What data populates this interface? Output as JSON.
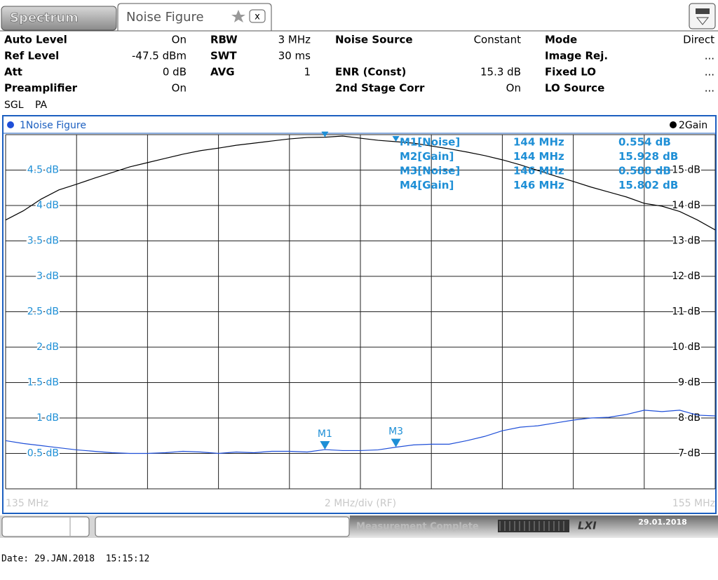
{
  "tabs": [
    "Spectrum",
    "Noise Figure"
  ],
  "settings": [
    [
      {
        "label": "Auto Level",
        "value": "On"
      },
      {
        "label": "RBW",
        "value": "3 MHz"
      },
      {
        "label": "Noise Source",
        "value": "Constant"
      },
      {
        "label": "Mode",
        "value": "Direct"
      }
    ],
    [
      {
        "label": "Ref Level",
        "value": "-47.5 dBm"
      },
      {
        "label": "SWT",
        "value": "30 ms"
      },
      null,
      {
        "label": "Image Rej.",
        "value": "..."
      }
    ],
    [
      {
        "label": "Att",
        "value": "0 dB"
      },
      {
        "label": "AVG",
        "value": "1"
      },
      {
        "label": "ENR (Const)",
        "value": "15.3 dB"
      },
      {
        "label": "Fixed LO",
        "value": "..."
      }
    ],
    [
      {
        "label": "Preamplifier",
        "value": "On"
      },
      null,
      {
        "label": "2nd Stage Corr",
        "value": "On"
      },
      {
        "label": "LO Source",
        "value": "..."
      }
    ]
  ],
  "sweep_status": [
    "SGL",
    "PA"
  ],
  "chart_data": {
    "type": "line",
    "x": [
      135,
      135.5,
      136,
      136.5,
      137,
      137.5,
      138,
      138.5,
      139,
      139.5,
      140,
      140.5,
      141,
      141.5,
      142,
      142.5,
      143,
      143.5,
      144,
      144.5,
      145,
      145.5,
      146,
      146.5,
      147,
      147.5,
      148,
      148.5,
      149,
      149.5,
      150,
      150.5,
      151,
      151.5,
      152,
      152.5,
      153,
      153.5,
      154,
      154.5,
      155
    ],
    "xlim": [
      135,
      155
    ],
    "x_divisions": 10,
    "xticks": [
      {
        "value": 135,
        "label": "135 MHz"
      },
      {
        "value": 155,
        "label": "155 MHz"
      }
    ],
    "xlabel": "2 MHz/div (RF)",
    "ylim": [
      0,
      5
    ],
    "yticks": [
      {
        "value": 0.5,
        "label": "0.5 dB"
      },
      {
        "value": 1,
        "label": "1 dB"
      },
      {
        "value": 1.5,
        "label": "1.5 dB"
      },
      {
        "value": 2,
        "label": "2 dB"
      },
      {
        "value": 2.5,
        "label": "2.5 dB"
      },
      {
        "value": 3,
        "label": "3 dB"
      },
      {
        "value": 3.5,
        "label": "3.5 dB"
      },
      {
        "value": 4,
        "label": "4 dB"
      },
      {
        "value": 4.5,
        "label": "4.5 dB"
      }
    ],
    "y2lim": [
      6,
      16
    ],
    "y2ticks": [
      {
        "value": 7,
        "label": "7 dB"
      },
      {
        "value": 8,
        "label": "8 dB"
      },
      {
        "value": 9,
        "label": "9 dB"
      },
      {
        "value": 10,
        "label": "10 dB"
      },
      {
        "value": 11,
        "label": "11 dB"
      },
      {
        "value": 12,
        "label": "12 dB"
      },
      {
        "value": 13,
        "label": "13 dB"
      },
      {
        "value": 14,
        "label": "14 dB"
      },
      {
        "value": 15,
        "label": "15 dB"
      }
    ],
    "grid": true,
    "series": [
      {
        "name": "1Noise Figure",
        "color": "#1f4fd8",
        "values": [
          0.68,
          0.64,
          0.61,
          0.58,
          0.55,
          0.53,
          0.51,
          0.5,
          0.5,
          0.51,
          0.53,
          0.52,
          0.5,
          0.52,
          0.51,
          0.53,
          0.53,
          0.52,
          0.554,
          0.54,
          0.54,
          0.55,
          0.588,
          0.62,
          0.63,
          0.63,
          0.68,
          0.74,
          0.82,
          0.87,
          0.89,
          0.93,
          0.97,
          1.0,
          1.01,
          1.05,
          1.11,
          1.09,
          1.11,
          1.04,
          1.03
        ]
      },
      {
        "name": "2Gain",
        "color": "#000000",
        "axis": "y2",
        "values": [
          13.59,
          13.85,
          14.18,
          14.44,
          14.6,
          14.77,
          14.93,
          15.09,
          15.21,
          15.33,
          15.45,
          15.55,
          15.62,
          15.7,
          15.76,
          15.82,
          15.88,
          15.92,
          15.928,
          15.96,
          15.9,
          15.84,
          15.802,
          15.76,
          15.68,
          15.6,
          15.51,
          15.41,
          15.29,
          15.15,
          14.99,
          14.83,
          14.68,
          14.52,
          14.38,
          14.24,
          14.06,
          13.98,
          13.83,
          13.59,
          13.31
        ]
      }
    ],
    "marker_color": "#1e8fd6",
    "markers": [
      {
        "name": "M1[Noise]",
        "plot_label": "M1",
        "x": 144,
        "x_label": "144 MHz",
        "value": 0.554,
        "value_label": "0.554 dB"
      },
      {
        "name": "M2[Gain]",
        "x": 144,
        "x_label": "144 MHz",
        "value": 15.928,
        "value_label": "15.928 dB",
        "axis": "y2"
      },
      {
        "name": "M3[Noise]",
        "plot_label": "M3",
        "x": 146,
        "x_label": "146 MHz",
        "value": 0.588,
        "value_label": "0.588 dB"
      },
      {
        "name": "M4[Gain]",
        "x": 146,
        "x_label": "146 MHz",
        "value": 15.802,
        "value_label": "15.802 dB",
        "axis": "y2"
      }
    ]
  },
  "status_bar": {
    "message": "Measurement Complete",
    "date": "29.01.2018"
  },
  "footer": "Date: 29.JAN.2018  15:15:12"
}
